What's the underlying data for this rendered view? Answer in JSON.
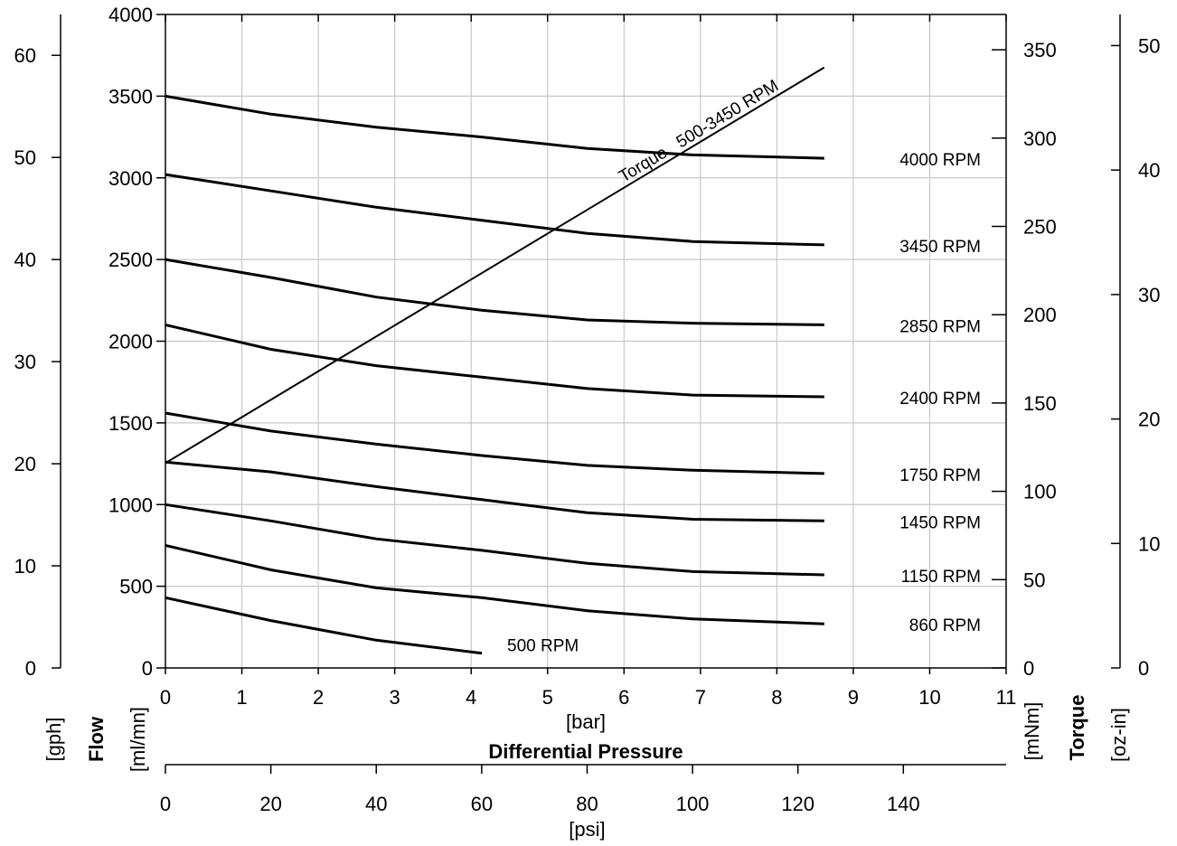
{
  "chart_data": {
    "type": "line",
    "title": "",
    "xlabel": "Differential Pressure",
    "x_axes": {
      "bar": {
        "unit": "[bar]",
        "range": [
          0,
          11
        ],
        "ticks": [
          0,
          1,
          2,
          3,
          4,
          5,
          6,
          7,
          8,
          9,
          10,
          11
        ]
      },
      "psi": {
        "unit": "[psi]",
        "range": [
          0,
          159.5
        ],
        "ticks": [
          0,
          20,
          40,
          60,
          80,
          100,
          120,
          140
        ]
      }
    },
    "y_axes": {
      "gph": {
        "unit": "[gph]",
        "range": [
          0,
          64
        ],
        "ticks": [
          0,
          10,
          20,
          30,
          40,
          50,
          60
        ]
      },
      "flow": {
        "title": "Flow",
        "unit": "[ml/mn]",
        "range": [
          0,
          4000
        ],
        "ticks": [
          0,
          500,
          1000,
          1500,
          2000,
          2500,
          3000,
          3500,
          4000
        ]
      },
      "mNm": {
        "unit": "[mNm]",
        "range": [
          0,
          370
        ],
        "ticks": [
          0,
          50,
          100,
          150,
          200,
          250,
          300,
          350
        ]
      },
      "torque": {
        "title": "Torque",
        "unit": "[oz-in]",
        "range": [
          0,
          52.5
        ],
        "ticks": [
          0,
          10,
          20,
          30,
          40,
          50
        ]
      }
    },
    "grid": true,
    "series": [
      {
        "name": "4000 RPM",
        "x": [
          0,
          1.38,
          2.76,
          4.14,
          5.52,
          6.9,
          8.62
        ],
        "y": [
          3500,
          3390,
          3310,
          3250,
          3180,
          3140,
          3120
        ]
      },
      {
        "name": "3450 RPM",
        "x": [
          0,
          1.38,
          2.76,
          4.14,
          5.52,
          6.9,
          8.62
        ],
        "y": [
          3020,
          2920,
          2820,
          2740,
          2660,
          2610,
          2590
        ]
      },
      {
        "name": "2850 RPM",
        "x": [
          0,
          1.38,
          2.76,
          4.14,
          5.52,
          6.9,
          8.62
        ],
        "y": [
          2500,
          2390,
          2270,
          2190,
          2130,
          2110,
          2100
        ]
      },
      {
        "name": "2400 RPM",
        "x": [
          0,
          1.38,
          2.76,
          4.14,
          5.52,
          6.9,
          8.62
        ],
        "y": [
          2100,
          1950,
          1850,
          1780,
          1710,
          1670,
          1660
        ]
      },
      {
        "name": "1750 RPM",
        "x": [
          0,
          1.38,
          2.76,
          4.14,
          5.52,
          6.9,
          8.62
        ],
        "y": [
          1560,
          1450,
          1370,
          1300,
          1240,
          1210,
          1190
        ]
      },
      {
        "name": "1450 RPM",
        "x": [
          0,
          1.38,
          2.76,
          4.14,
          5.52,
          6.9,
          8.62
        ],
        "y": [
          1260,
          1200,
          1110,
          1030,
          950,
          910,
          900
        ]
      },
      {
        "name": "1150 RPM",
        "x": [
          0,
          1.38,
          2.76,
          4.14,
          5.52,
          6.9,
          8.62
        ],
        "y": [
          1000,
          900,
          790,
          720,
          640,
          590,
          570
        ]
      },
      {
        "name": "860 RPM",
        "x": [
          0,
          1.38,
          2.76,
          4.14,
          5.52,
          6.9,
          8.62
        ],
        "y": [
          750,
          600,
          490,
          430,
          350,
          300,
          270
        ]
      },
      {
        "name": "500 RPM",
        "x": [
          0,
          1.38,
          2.76,
          4.14
        ],
        "y": [
          430,
          290,
          170,
          90
        ]
      }
    ],
    "torque_line": {
      "label": "Torque   500-3450 RPM",
      "x": [
        0,
        8.62
      ],
      "y_mNm": [
        116,
        340
      ]
    },
    "annotations": [
      "4000 RPM",
      "3450 RPM",
      "2850 RPM",
      "2400 RPM",
      "1750 RPM",
      "1450 RPM",
      "1150 RPM",
      "860 RPM",
      "500 RPM",
      "Torque   500-3450 RPM"
    ]
  }
}
